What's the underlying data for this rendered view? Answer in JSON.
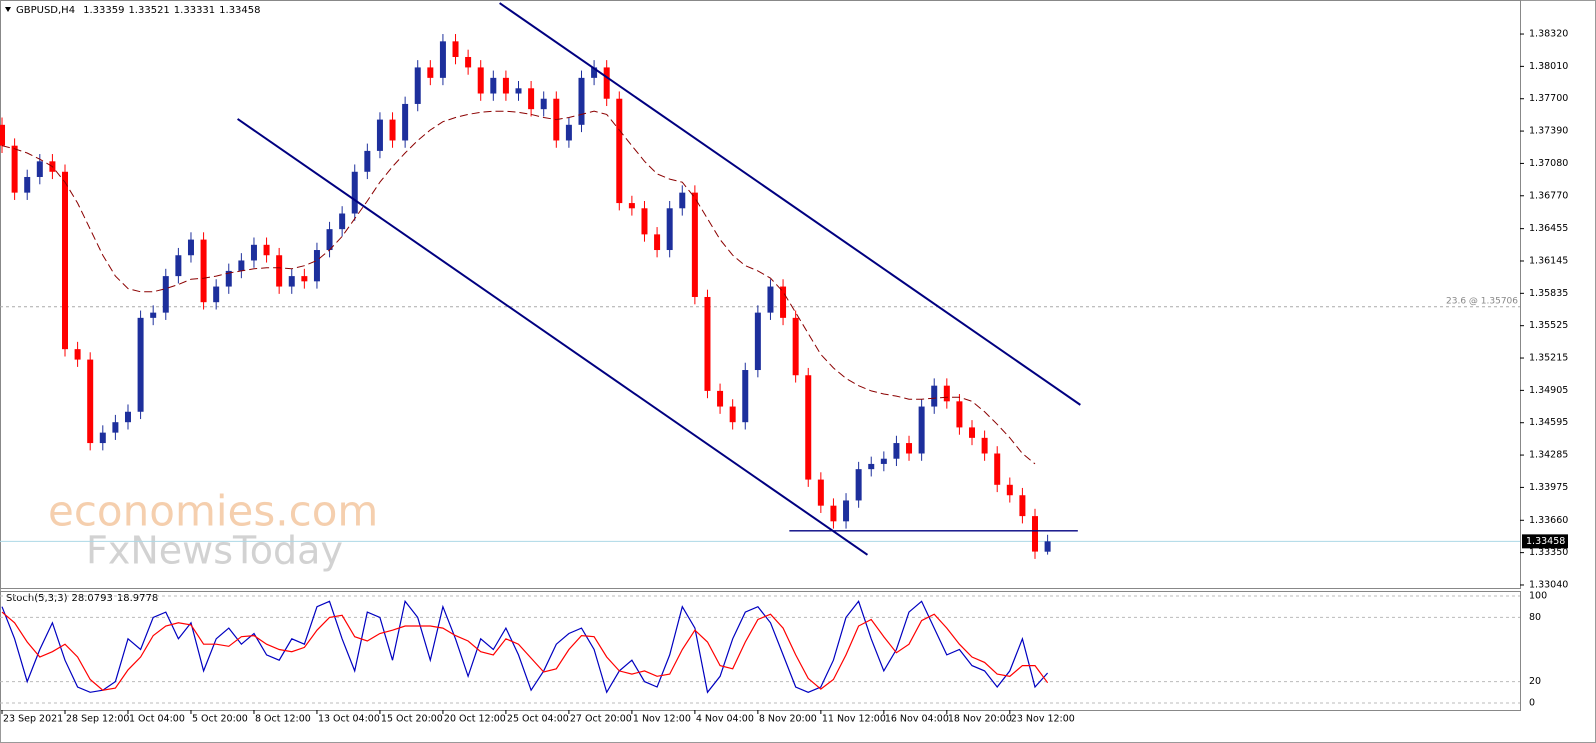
{
  "chart_data": [
    {
      "type": "candlestick",
      "title": "GBPUSD,H4",
      "xlim": [
        -0.16,
        120.5
      ],
      "ylim": [
        1.33011,
        1.38627
      ],
      "yticks": [
        {
          "value": 1.3832,
          "label": "1.38320"
        },
        {
          "value": 1.3801,
          "label": "1.38010"
        },
        {
          "value": 1.377,
          "label": "1.37700"
        },
        {
          "value": 1.3739,
          "label": "1.37390"
        },
        {
          "value": 1.3708,
          "label": "1.37080"
        },
        {
          "value": 1.3677,
          "label": "1.36770"
        },
        1.36455,
        1.36145,
        1.35835,
        1.35525,
        1.35215,
        1.34905,
        1.34595,
        1.34285,
        1.33975,
        {
          "value": 1.3366,
          "label": "1.33660"
        },
        {
          "value": 1.3335,
          "label": "1.33350"
        },
        {
          "value": 1.3304,
          "label": "1.33040"
        }
      ],
      "up_color": "#1d2f9c",
      "down_color": "#ff0000",
      "open": [
        1.3745,
        1.3725,
        1.368,
        1.3695,
        1.371,
        1.37,
        1.353,
        1.352,
        1.344,
        1.345,
        1.346,
        1.347,
        1.356,
        1.3565,
        1.36,
        1.362,
        1.3635,
        1.3575,
        1.359,
        1.3605,
        1.3615,
        1.363,
        1.362,
        1.359,
        1.36,
        1.3595,
        1.3625,
        1.3645,
        1.366,
        1.37,
        1.372,
        1.375,
        1.373,
        1.3765,
        1.38,
        1.379,
        1.3825,
        1.381,
        1.38,
        1.3775,
        1.379,
        1.3775,
        1.378,
        1.376,
        1.377,
        1.373,
        1.3745,
        1.379,
        1.38,
        1.377,
        1.367,
        1.3665,
        1.364,
        1.3625,
        1.3665,
        1.368,
        1.358,
        1.349,
        1.3475,
        1.346,
        1.351,
        1.3565,
        1.359,
        1.356,
        1.3505,
        1.3405,
        1.338,
        1.3365,
        1.3385,
        1.3415,
        1.342,
        1.3425,
        1.344,
        1.343,
        1.3475,
        1.3495,
        1.348,
        1.3455,
        1.3445,
        1.343,
        1.34,
        1.339,
        1.337,
        1.33359
      ],
      "high": [
        1.3752,
        1.3732,
        1.3702,
        1.3717,
        1.3717,
        1.3707,
        1.3537,
        1.3527,
        1.3457,
        1.3467,
        1.3477,
        1.3567,
        1.3572,
        1.3607,
        1.3627,
        1.3642,
        1.3642,
        1.3597,
        1.3612,
        1.3622,
        1.3637,
        1.3637,
        1.3627,
        1.3607,
        1.3607,
        1.3632,
        1.3652,
        1.3667,
        1.3707,
        1.3727,
        1.3757,
        1.3757,
        1.3772,
        1.3807,
        1.3807,
        1.3832,
        1.3832,
        1.3817,
        1.3807,
        1.3797,
        1.3797,
        1.3787,
        1.3787,
        1.3777,
        1.3777,
        1.3752,
        1.3797,
        1.3807,
        1.3807,
        1.3777,
        1.3677,
        1.3672,
        1.3647,
        1.3672,
        1.3687,
        1.3687,
        1.3587,
        1.3497,
        1.3482,
        1.3517,
        1.3572,
        1.3597,
        1.3597,
        1.3567,
        1.3512,
        1.3412,
        1.3387,
        1.3392,
        1.3422,
        1.3427,
        1.3432,
        1.3447,
        1.3447,
        1.3482,
        1.3502,
        1.3502,
        1.3487,
        1.3462,
        1.3452,
        1.3437,
        1.3407,
        1.3397,
        1.3377,
        1.33521
      ],
      "low": [
        1.3718,
        1.3673,
        1.3673,
        1.3688,
        1.3693,
        1.3523,
        1.3513,
        1.3433,
        1.3433,
        1.3443,
        1.3453,
        1.3463,
        1.3553,
        1.3558,
        1.3593,
        1.3613,
        1.3568,
        1.3568,
        1.3583,
        1.3598,
        1.3608,
        1.3613,
        1.3583,
        1.3583,
        1.3588,
        1.3588,
        1.3618,
        1.3638,
        1.3653,
        1.3693,
        1.3713,
        1.3723,
        1.3723,
        1.3758,
        1.3783,
        1.3783,
        1.3803,
        1.3793,
        1.3768,
        1.3768,
        1.3768,
        1.3768,
        1.3753,
        1.3753,
        1.3723,
        1.3723,
        1.3738,
        1.3783,
        1.3763,
        1.3663,
        1.3658,
        1.3633,
        1.3618,
        1.3618,
        1.3658,
        1.3573,
        1.3483,
        1.3468,
        1.3453,
        1.3453,
        1.3503,
        1.3558,
        1.3553,
        1.3498,
        1.3398,
        1.3373,
        1.3358,
        1.3358,
        1.3378,
        1.3408,
        1.3413,
        1.3418,
        1.3423,
        1.3423,
        1.3468,
        1.3473,
        1.3448,
        1.3438,
        1.3423,
        1.3393,
        1.3383,
        1.3363,
        1.3329,
        1.33331
      ],
      "close": [
        1.3725,
        1.368,
        1.3695,
        1.371,
        1.37,
        1.353,
        1.352,
        1.344,
        1.345,
        1.346,
        1.347,
        1.356,
        1.3565,
        1.36,
        1.362,
        1.3635,
        1.3575,
        1.359,
        1.3605,
        1.3615,
        1.363,
        1.362,
        1.359,
        1.36,
        1.3595,
        1.3625,
        1.3645,
        1.366,
        1.37,
        1.372,
        1.375,
        1.373,
        1.3765,
        1.38,
        1.379,
        1.3825,
        1.381,
        1.38,
        1.3775,
        1.379,
        1.3775,
        1.378,
        1.376,
        1.377,
        1.373,
        1.3745,
        1.379,
        1.38,
        1.377,
        1.367,
        1.3665,
        1.364,
        1.3625,
        1.3665,
        1.368,
        1.358,
        1.349,
        1.3475,
        1.346,
        1.351,
        1.3565,
        1.359,
        1.356,
        1.3505,
        1.3405,
        1.338,
        1.3365,
        1.3385,
        1.3415,
        1.342,
        1.3425,
        1.344,
        1.343,
        1.3475,
        1.3495,
        1.348,
        1.3455,
        1.3445,
        1.343,
        1.34,
        1.339,
        1.337,
        1.3336,
        1.33458
      ],
      "ma_color": "#8b0000",
      "ma_values": [
        1.3725,
        1.3722,
        1.3718,
        1.3712,
        1.3705,
        1.369,
        1.367,
        1.3645,
        1.362,
        1.36,
        1.3588,
        1.3585,
        1.3585,
        1.3588,
        1.3592,
        1.3597,
        1.3598,
        1.36,
        1.3603,
        1.3605,
        1.3607,
        1.3608,
        1.3608,
        1.3607,
        1.361,
        1.3615,
        1.3625,
        1.3638,
        1.3655,
        1.3672,
        1.369,
        1.3705,
        1.3718,
        1.373,
        1.374,
        1.3748,
        1.3752,
        1.3755,
        1.3757,
        1.3758,
        1.3758,
        1.3757,
        1.3755,
        1.3752,
        1.375,
        1.3752,
        1.3755,
        1.3758,
        1.3755,
        1.374,
        1.3725,
        1.371,
        1.3698,
        1.3693,
        1.369,
        1.3675,
        1.3655,
        1.3635,
        1.362,
        1.361,
        1.3605,
        1.3598,
        1.3585,
        1.3565,
        1.3545,
        1.3525,
        1.3512,
        1.3502,
        1.3495,
        1.349,
        1.3487,
        1.3485,
        1.3482,
        1.3482,
        1.3483,
        1.3484,
        1.3484,
        1.348,
        1.347,
        1.3458,
        1.3445,
        1.343,
        1.342,
        null
      ],
      "lines": [
        {
          "x": [
            39.5,
            85.6
          ],
          "y": [
            1.38617,
            1.34766
          ],
          "color": "#000080"
        },
        {
          "x": [
            18.7,
            68.7
          ],
          "y": [
            1.37506,
            1.33329
          ],
          "color": "#000080"
        },
        {
          "x": [
            62.5,
            85.4
          ],
          "y": [
            1.33559,
            1.33559
          ],
          "color": "#000080"
        }
      ],
      "fib": {
        "value": 1.35706,
        "label": "23.6 @ 1.35706"
      },
      "last_color": "#add8e6",
      "watermark": [
        "economies.com",
        "FxNewsToday"
      ]
    },
    {
      "type": "line",
      "title": "Stoch(5,3,3)",
      "xlim": [
        -0.16,
        120.5
      ],
      "ylim": [
        -6.5,
        105.6
      ],
      "yticks": [
        100,
        80,
        20,
        0
      ],
      "xticks": [
        {
          "value": 0,
          "label": "23 Sep 2021"
        },
        {
          "value": 5,
          "label": "28 Sep 12:00"
        },
        {
          "value": 10,
          "label": "1 Oct 04:00"
        },
        {
          "value": 15,
          "label": "5 Oct 20:00"
        },
        {
          "value": 20,
          "label": "8 Oct 12:00"
        },
        {
          "value": 25,
          "label": "13 Oct 04:00"
        },
        {
          "value": 30,
          "label": "15 Oct 20:00"
        },
        {
          "value": 35,
          "label": "20 Oct 12:00"
        },
        {
          "value": 40,
          "label": "25 Oct 04:00"
        },
        {
          "value": 45,
          "label": "27 Oct 20:00"
        },
        {
          "value": 50,
          "label": "1 Nov 12:00"
        },
        {
          "value": 55,
          "label": "4 Nov 04:00"
        },
        {
          "value": 60,
          "label": "8 Nov 20:00"
        },
        {
          "value": 65,
          "label": "11 Nov 12:00"
        },
        {
          "value": 70,
          "label": "16 Nov 04:00"
        },
        {
          "value": 75,
          "label": "18 Nov 20:00"
        },
        {
          "value": 80,
          "label": "23 Nov 12:00"
        }
      ],
      "series": [
        {
          "color": "#0000c0",
          "values": [
            90,
            60,
            20,
            50,
            75,
            40,
            15,
            10,
            12,
            20,
            60,
            50,
            80,
            85,
            60,
            75,
            30,
            60,
            70,
            55,
            65,
            45,
            40,
            60,
            55,
            90,
            95,
            60,
            30,
            85,
            80,
            40,
            95,
            80,
            40,
            90,
            60,
            25,
            60,
            50,
            70,
            45,
            12,
            30,
            55,
            65,
            70,
            50,
            10,
            30,
            40,
            20,
            15,
            45,
            90,
            70,
            10,
            25,
            60,
            85,
            90,
            75,
            45,
            15,
            10,
            15,
            40,
            80,
            95,
            60,
            30,
            50,
            85,
            95,
            70,
            45,
            50,
            35,
            30,
            15,
            30,
            60,
            15,
            28.0793
          ]
        },
        {
          "color": "#ff0000",
          "values": [
            85,
            75,
            57,
            43,
            48,
            55,
            43,
            22,
            12,
            14,
            31,
            43,
            63,
            72,
            75,
            73,
            55,
            55,
            53,
            62,
            63,
            55,
            50,
            48,
            52,
            68,
            80,
            82,
            62,
            58,
            65,
            68,
            72,
            72,
            72,
            70,
            63,
            58,
            48,
            45,
            60,
            55,
            42,
            29,
            32,
            50,
            63,
            62,
            43,
            30,
            27,
            30,
            25,
            27,
            50,
            68,
            57,
            35,
            32,
            57,
            78,
            83,
            70,
            45,
            23,
            13,
            22,
            45,
            72,
            78,
            62,
            47,
            55,
            77,
            83,
            70,
            55,
            43,
            38,
            27,
            25,
            35,
            35,
            18.9778
          ]
        }
      ]
    }
  ]
}
